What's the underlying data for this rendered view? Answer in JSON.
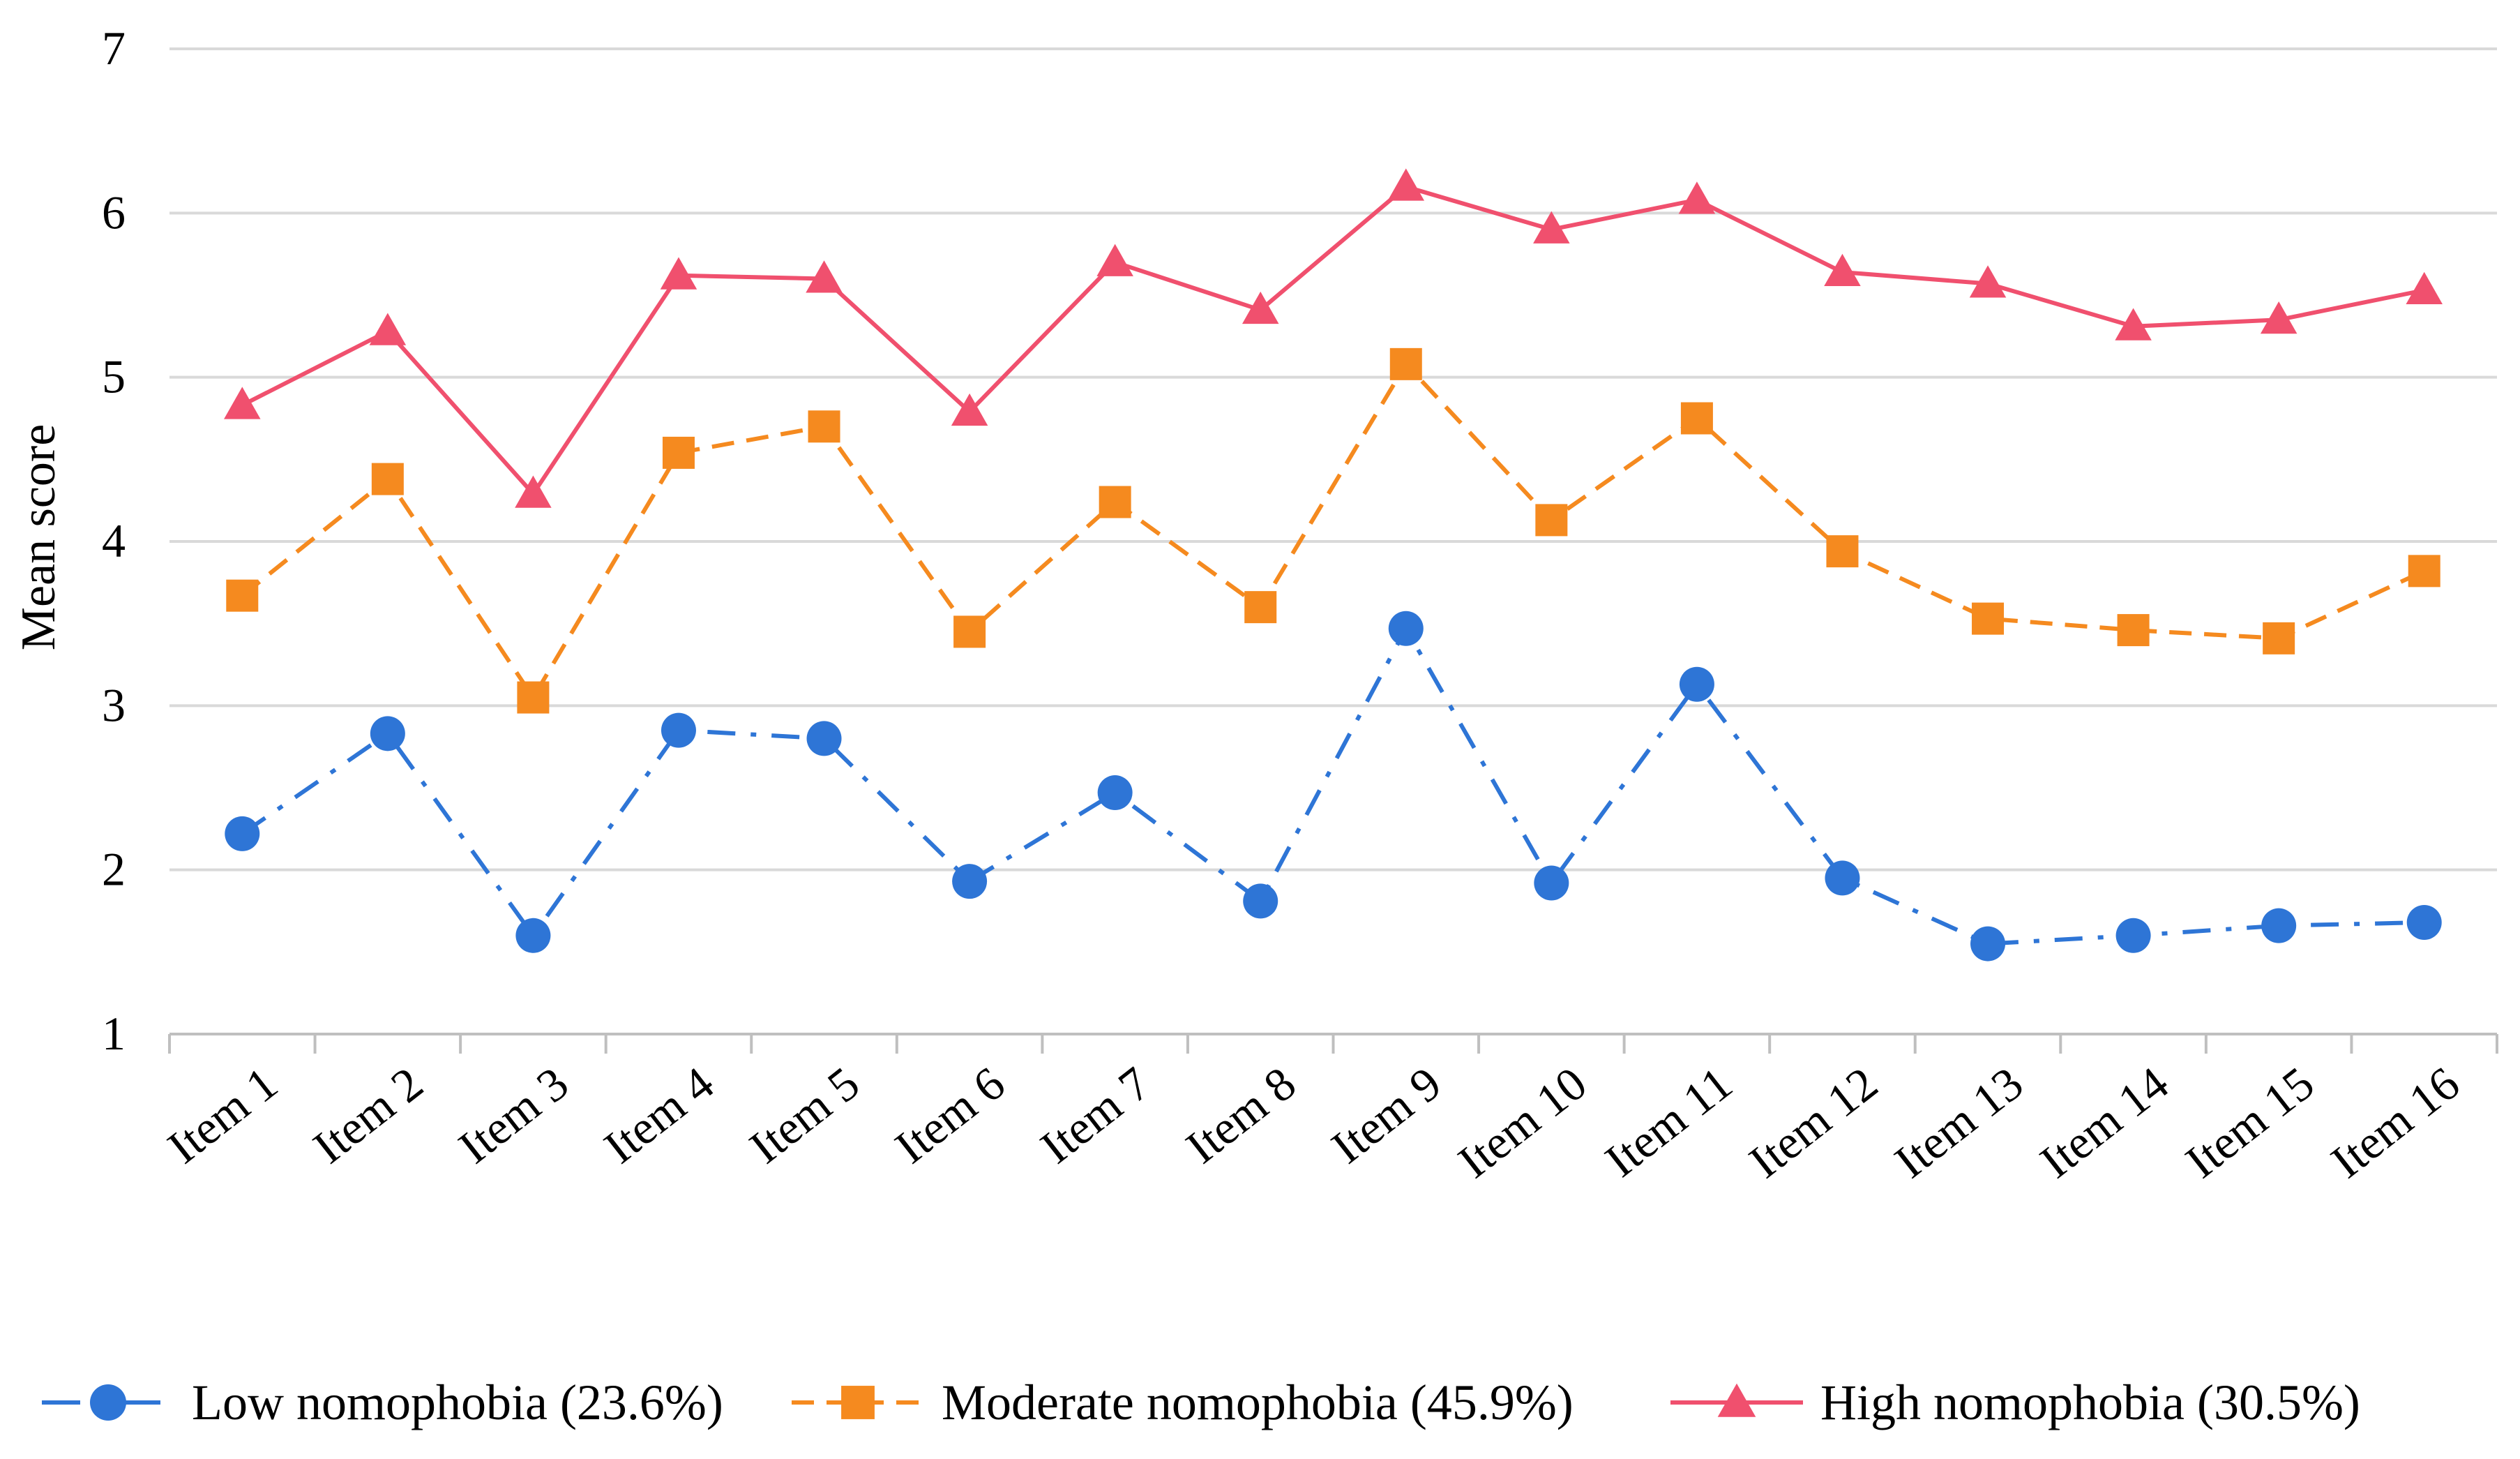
{
  "chart_data": {
    "type": "line",
    "title": "",
    "xlabel": "",
    "ylabel": "Mean score",
    "ylim": [
      1,
      7
    ],
    "yticks": [
      1,
      2,
      3,
      4,
      5,
      6,
      7
    ],
    "grid": true,
    "legend_position": "bottom",
    "categories": [
      "Item 1",
      "Item 2",
      "Item 3",
      "Item 4",
      "Item 5",
      "Item 6",
      "Item 7",
      "Item 8",
      "Item 9",
      "Item 10",
      "Item 11",
      "Item 12",
      "Item 13",
      "Item 14",
      "Item 15",
      "Item 16"
    ],
    "series": [
      {
        "name": "Low nomophobia (23.6%)",
        "color": "#2e75d6",
        "marker": "circle",
        "line_style": "dash-dot",
        "values": [
          2.22,
          2.83,
          1.6,
          2.85,
          2.8,
          1.93,
          2.47,
          1.81,
          3.47,
          1.92,
          3.13,
          1.95,
          1.55,
          1.6,
          1.66,
          1.68
        ]
      },
      {
        "name": "Moderate nomophobia (45.9%)",
        "color": "#f58a1f",
        "marker": "square",
        "line_style": "dashed",
        "values": [
          3.67,
          4.38,
          3.05,
          4.54,
          4.7,
          3.45,
          4.24,
          3.6,
          5.08,
          4.13,
          4.75,
          3.94,
          3.53,
          3.46,
          3.41,
          3.82
        ]
      },
      {
        "name": "High nomophobia (30.5%)",
        "color": "#f0506e",
        "marker": "triangle",
        "line_style": "solid",
        "values": [
          4.83,
          5.28,
          4.29,
          5.62,
          5.6,
          4.79,
          5.7,
          5.41,
          6.16,
          5.9,
          6.08,
          5.64,
          5.57,
          5.31,
          5.35,
          5.53
        ]
      }
    ]
  }
}
